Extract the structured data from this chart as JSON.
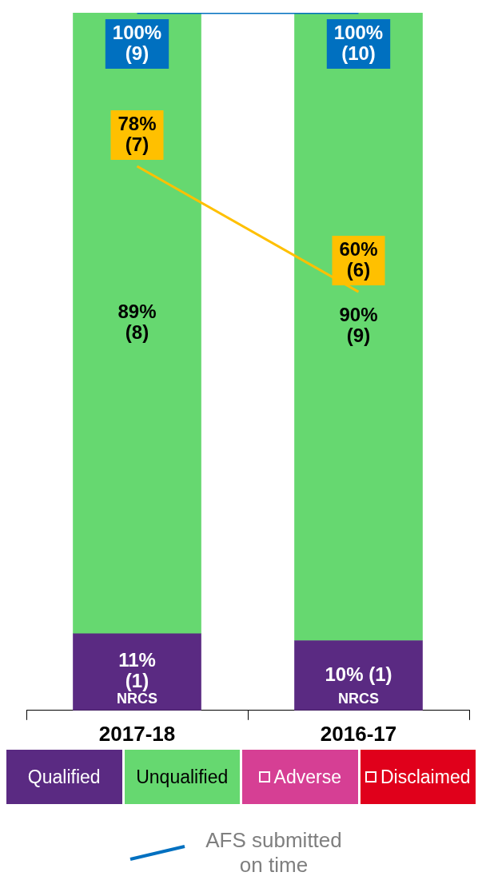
{
  "chart_data": {
    "type": "bar",
    "stacked": true,
    "categories": [
      "2017-18",
      "2016-17"
    ],
    "ylim": [
      0,
      100
    ],
    "tick_labels": "x",
    "legend": "bottom",
    "series": [
      {
        "name": "Qualified",
        "color": "#5a2a82",
        "values": [
          11,
          10
        ],
        "value_labels": [
          "11%\n(1)",
          "10% (1)"
        ]
      },
      {
        "name": "Unqualified",
        "color": "#66d870",
        "values": [
          89,
          90
        ],
        "value_labels": [
          "89%\n(8)",
          "90%\n(9)"
        ]
      },
      {
        "name": "Adverse",
        "color": "#d63f94",
        "values": [
          null,
          null
        ]
      },
      {
        "name": "Disclaimed",
        "color": "#e0001b",
        "values": [
          null,
          null
        ]
      },
      {
        "type": "line",
        "color": "#ffc000",
        "values": [
          78,
          60
        ],
        "value_labels": [
          "78%\n(7)",
          "60%\n(6)"
        ]
      },
      {
        "type": "line",
        "name": "AFS submitted on time",
        "color": "#0070c0",
        "values": [
          100,
          100
        ],
        "value_labels": [
          "100%\n(9)",
          "100%\n(10)"
        ]
      }
    ],
    "annotations": [
      {
        "text": "NRCS",
        "x": "2017-18",
        "y": 0.5
      },
      {
        "text": "NRCS",
        "x": "2016-17",
        "y": 0.5
      }
    ]
  }
}
